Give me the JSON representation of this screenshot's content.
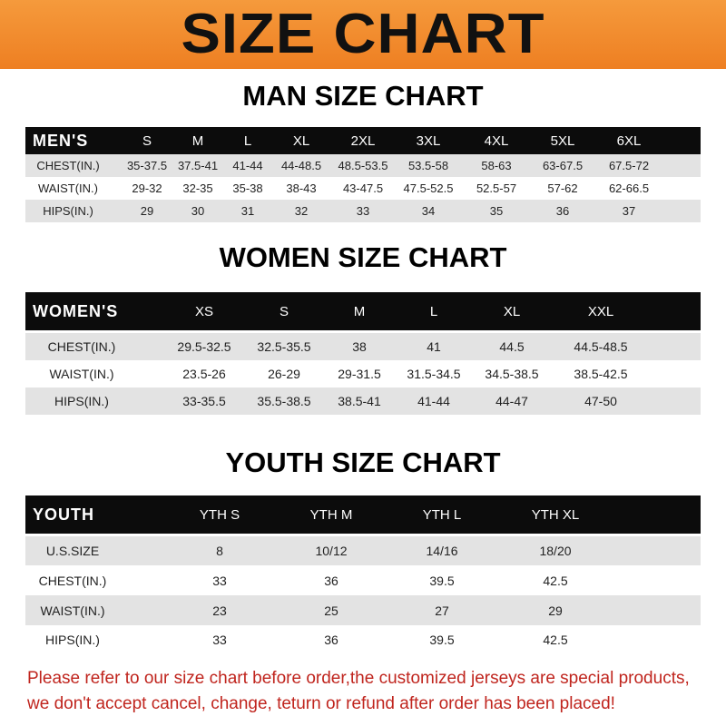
{
  "title": "SIZE CHART",
  "men": {
    "heading": "MAN SIZE CHART",
    "header": [
      "MEN'S",
      "S",
      "M",
      "L",
      "XL",
      "2XL",
      "3XL",
      "4XL",
      "5XL",
      "6XL"
    ],
    "rows": [
      [
        "CHEST(IN.)",
        "35-37.5",
        "37.5-41",
        "41-44",
        "44-48.5",
        "48.5-53.5",
        "53.5-58",
        "58-63",
        "63-67.5",
        "67.5-72"
      ],
      [
        "WAIST(IN.)",
        "29-32",
        "32-35",
        "35-38",
        "38-43",
        "43-47.5",
        "47.5-52.5",
        "52.5-57",
        "57-62",
        "62-66.5"
      ],
      [
        "HIPS(IN.)",
        "29",
        "30",
        "31",
        "32",
        "33",
        "34",
        "35",
        "36",
        "37"
      ]
    ]
  },
  "women": {
    "heading": "WOMEN SIZE CHART",
    "header": [
      "WOMEN'S",
      "XS",
      "S",
      "M",
      "L",
      "XL",
      "XXL"
    ],
    "rows": [
      [
        "CHEST(IN.)",
        "29.5-32.5",
        "32.5-35.5",
        "38",
        "41",
        "44.5",
        "44.5-48.5"
      ],
      [
        "WAIST(IN.)",
        "23.5-26",
        "26-29",
        "29-31.5",
        "31.5-34.5",
        "34.5-38.5",
        "38.5-42.5"
      ],
      [
        "HIPS(IN.)",
        "33-35.5",
        "35.5-38.5",
        "38.5-41",
        "41-44",
        "44-47",
        "47-50"
      ]
    ]
  },
  "youth": {
    "heading": "YOUTH SIZE CHART",
    "header": [
      "YOUTH",
      "YTH S",
      "YTH M",
      "YTH L",
      "YTH XL"
    ],
    "rows": [
      [
        "U.S.SIZE",
        "8",
        "10/12",
        "14/16",
        "18/20"
      ],
      [
        "CHEST(IN.)",
        "33",
        "36",
        "39.5",
        "42.5"
      ],
      [
        "WAIST(IN.)",
        "23",
        "25",
        "27",
        "29"
      ],
      [
        "HIPS(IN.)",
        "33",
        "36",
        "39.5",
        "42.5"
      ]
    ]
  },
  "notice": [
    "Please refer to our size chart before order,the customized jerseys are special products,",
    "we don't accept cancel, change, teturn or refund after order has been placed!"
  ],
  "colors": {
    "banner": "#ee7f22",
    "header_row": "#0c0c0c",
    "stripe": "#e3e3e3",
    "notice": "#c0251e"
  }
}
